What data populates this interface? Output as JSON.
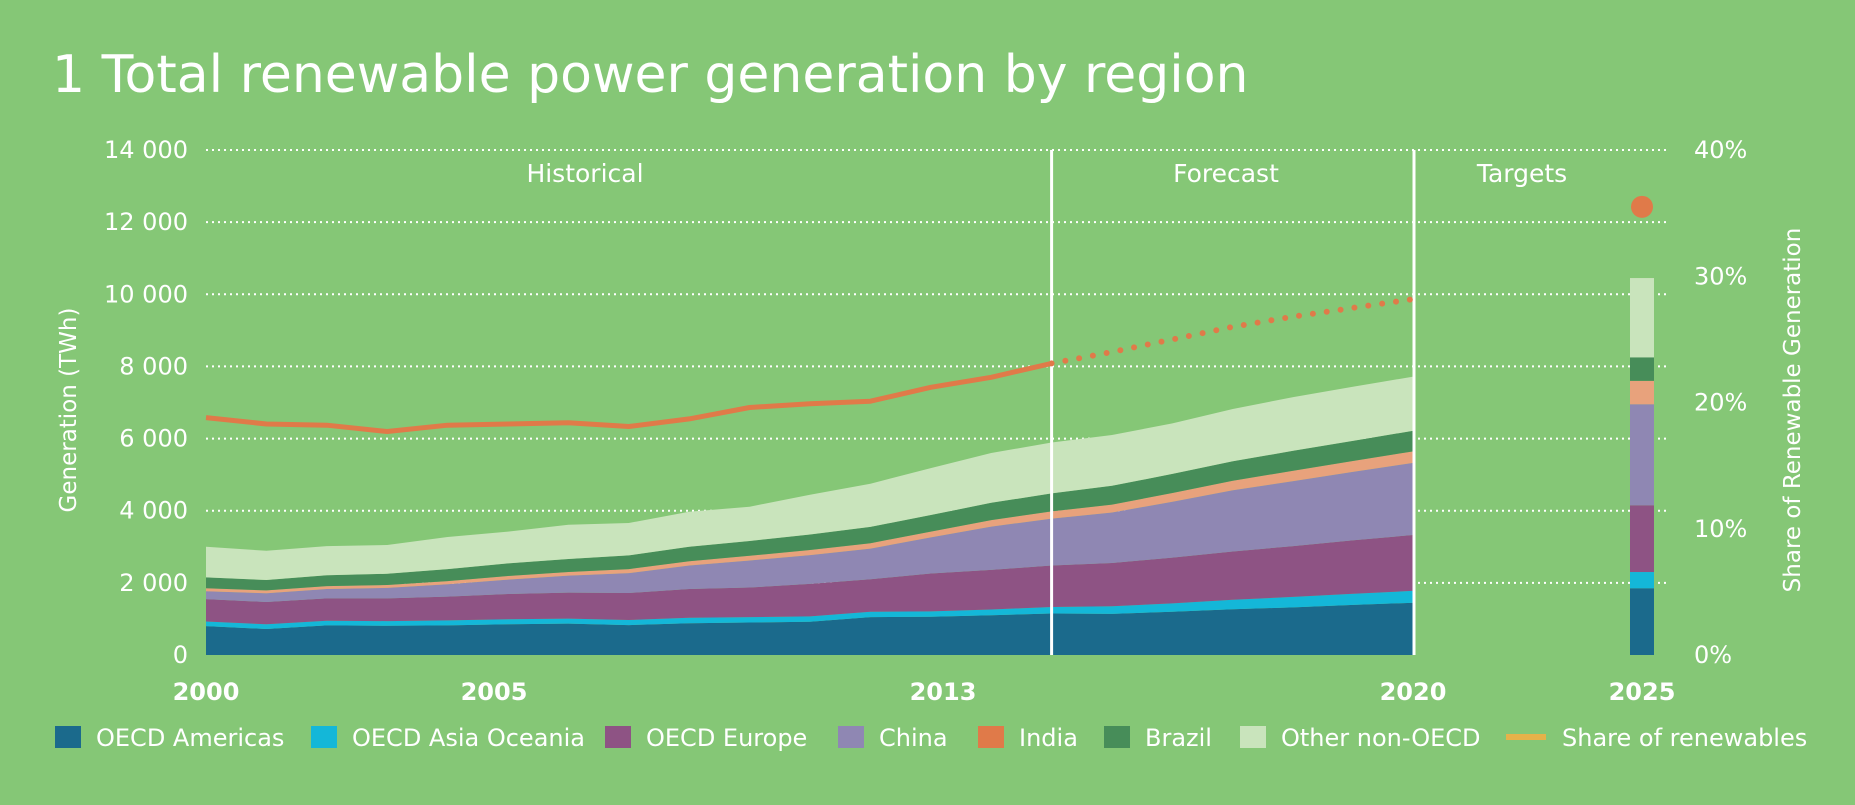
{
  "chart_data": {
    "type": "area",
    "title": "1 Total renewable power generation by region",
    "ylabel": "Generation (TWh)",
    "ylabel_right": "Share of  Renewable Generation",
    "ylim": [
      0,
      14000
    ],
    "ylim_right": [
      0,
      40
    ],
    "yticks": [
      "0",
      "2 000",
      "4 000",
      "6 000",
      "8 000",
      "10 000",
      "12 000",
      "14 000"
    ],
    "yticks_right": [
      "0%",
      "10%",
      "20%",
      "30%",
      "40%"
    ],
    "xticks": [
      "2000",
      "2005",
      "2013",
      "2020",
      "2025"
    ],
    "sections": [
      "Historical",
      "Forecast",
      "Targets"
    ],
    "grid": true,
    "legend_position": "bottom",
    "x": [
      2000,
      2001,
      2002,
      2003,
      2004,
      2005,
      2006,
      2007,
      2008,
      2009,
      2010,
      2011,
      2012,
      2013,
      2014,
      2015,
      2016,
      2017,
      2018,
      2019,
      2020
    ],
    "series": [
      {
        "name": "OECD Americas",
        "color": "#1b6a8c",
        "values": [
          800,
          720,
          820,
          810,
          820,
          850,
          870,
          830,
          880,
          900,
          920,
          1050,
          1060,
          1100,
          1150,
          1140,
          1200,
          1270,
          1320,
          1390,
          1450
        ]
      },
      {
        "name": "OECD Asia Oceania",
        "color": "#14b7d8",
        "values": [
          130,
          130,
          130,
          130,
          140,
          140,
          140,
          140,
          150,
          150,
          150,
          150,
          150,
          160,
          180,
          210,
          230,
          260,
          290,
          310,
          330
        ]
      },
      {
        "name": "OECD Europe",
        "color": "#8e5384",
        "values": [
          620,
          620,
          620,
          630,
          660,
          700,
          720,
          750,
          800,
          820,
          900,
          900,
          1050,
          1100,
          1150,
          1200,
          1270,
          1340,
          1410,
          1480,
          1550
        ]
      },
      {
        "name": "China",
        "color": "#8f87b3",
        "values": [
          220,
          240,
          260,
          290,
          340,
          400,
          470,
          550,
          650,
          750,
          800,
          850,
          1000,
          1200,
          1300,
          1400,
          1550,
          1700,
          1800,
          1900,
          2000
        ]
      },
      {
        "name": "India",
        "color": "#e8a27c",
        "values": [
          80,
          80,
          80,
          80,
          90,
          100,
          100,
          110,
          120,
          130,
          140,
          150,
          160,
          180,
          200,
          220,
          240,
          260,
          290,
          300,
          320
        ]
      },
      {
        "name": "Brazil",
        "color": "#478d59",
        "values": [
          300,
          290,
          300,
          310,
          330,
          350,
          360,
          380,
          400,
          410,
          430,
          450,
          460,
          480,
          500,
          520,
          530,
          540,
          550,
          560,
          570
        ]
      },
      {
        "name": "Other non-OECD",
        "color": "#c9e4bc",
        "values": [
          850,
          810,
          810,
          800,
          890,
          880,
          950,
          900,
          970,
          950,
          1100,
          1200,
          1300,
          1380,
          1410,
          1410,
          1400,
          1450,
          1490,
          1500,
          1500
        ]
      }
    ],
    "share_of_renewables": {
      "name": "Share of renewables",
      "color": "#e07a49",
      "legend_color": "#e6b24a",
      "x": [
        2000,
        2001,
        2002,
        2003,
        2004,
        2005,
        2006,
        2007,
        2008,
        2009,
        2010,
        2011,
        2012,
        2013,
        2014,
        2015,
        2016,
        2017,
        2018,
        2019,
        2020
      ],
      "values": [
        18.8,
        18.3,
        18.2,
        17.7,
        18.2,
        18.3,
        18.4,
        18.1,
        18.7,
        19.6,
        19.9,
        20.1,
        21.2,
        22.0,
        23.1,
        24.0,
        25.0,
        26.0,
        26.8,
        27.5,
        28.2
      ],
      "style_after_2014": "dotted"
    },
    "targets_2025": {
      "x": "2025",
      "stack": [
        {
          "name": "OECD Americas",
          "value": 1850
        },
        {
          "name": "OECD Asia Oceania",
          "value": 450
        },
        {
          "name": "OECD Europe",
          "value": 1850
        },
        {
          "name": "China",
          "value": 2800
        },
        {
          "name": "India",
          "value": 650
        },
        {
          "name": "Brazil",
          "value": 650
        },
        {
          "name": "Other non-OECD",
          "value": 2200
        }
      ],
      "share_marker": 35.5
    }
  },
  "legend": [
    {
      "label": "OECD Americas",
      "color": "#1b6a8c"
    },
    {
      "label": "OECD Asia Oceania",
      "color": "#14b7d8"
    },
    {
      "label": "OECD Europe",
      "color": "#8e5384"
    },
    {
      "label": "China",
      "color": "#8f87b3"
    },
    {
      "label": "India",
      "color": "#e07a49"
    },
    {
      "label": "Brazil",
      "color": "#478d59"
    },
    {
      "label": "Other non-OECD",
      "color": "#c9e4bc"
    },
    {
      "label": "Share of renewables",
      "color": "#e6b24a",
      "kind": "line"
    }
  ]
}
